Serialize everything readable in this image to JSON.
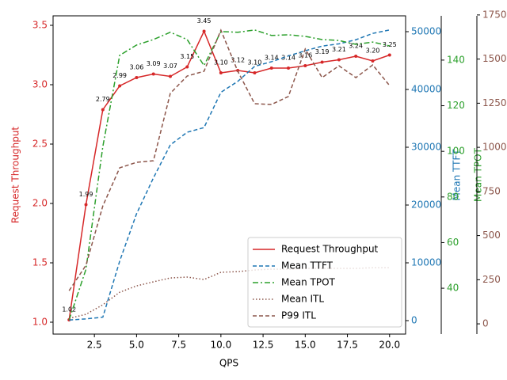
{
  "chart_data": {
    "type": "line",
    "xlabel": "QPS",
    "ylabel": "Request Throughput",
    "y2label": "Mean TTFT",
    "y3label": "Mean TPOT",
    "x": [
      1,
      2,
      3,
      4,
      5,
      6,
      7,
      8,
      9,
      10,
      11,
      12,
      13,
      14,
      15,
      16,
      17,
      18,
      19,
      20
    ],
    "xlim": [
      0.05,
      20.95
    ],
    "xticks": [
      {
        "value": 2.5,
        "label": "2.5"
      },
      {
        "value": 5,
        "label": "5.0"
      },
      {
        "value": 7.5,
        "label": "7.5"
      },
      {
        "value": 10,
        "label": "10.0"
      },
      {
        "value": 12.5,
        "label": "12.5"
      },
      {
        "value": 15,
        "label": "15.0"
      },
      {
        "value": 17.5,
        "label": "17.5"
      },
      {
        "value": 20,
        "label": "20.0"
      }
    ],
    "ylim": [
      0.9,
      3.58
    ],
    "yticks": [
      {
        "value": 1,
        "label": "1.0"
      },
      {
        "value": 1.5,
        "label": "1.5"
      },
      {
        "value": 2,
        "label": "2.0"
      },
      {
        "value": 2.5,
        "label": "2.5"
      },
      {
        "value": 3,
        "label": "3.0"
      },
      {
        "value": 3.5,
        "label": "3.5"
      }
    ],
    "y2lim": [
      -2330,
      52740
    ],
    "y2ticks": [
      0,
      10000,
      20000,
      30000,
      40000,
      50000
    ],
    "y3lim": [
      19.9,
      159.4
    ],
    "y3ticks": [
      40,
      60,
      80,
      100,
      120,
      140
    ],
    "y4lim": [
      -58,
      1745
    ],
    "y4ticks": [
      0,
      250,
      500,
      750,
      1000,
      1250,
      1500,
      1750
    ],
    "legend": "lower right",
    "series": [
      {
        "name": "Request Throughput",
        "color": "#d62728",
        "axis": "y",
        "dash": "solid",
        "markers": true,
        "values": [
          1.02,
          1.99,
          2.79,
          2.99,
          3.06,
          3.09,
          3.07,
          3.15,
          3.45,
          3.1,
          3.12,
          3.1,
          3.14,
          3.14,
          3.16,
          3.19,
          3.21,
          3.24,
          3.2,
          3.25
        ],
        "value_labels": [
          "1.02",
          "1.99",
          "2.79",
          "2.99",
          "3.06",
          "3.09",
          "3.07",
          "3.15",
          "3.45",
          "3.10",
          "3.12",
          "3.10",
          "3.14",
          "3.14",
          "3.16",
          "3.19",
          "3.21",
          "3.24",
          "3.20",
          "3.25"
        ]
      },
      {
        "name": "Mean TTFT",
        "color": "#1f77b4",
        "axis": "y2",
        "dash": "dashed",
        "values": [
          100,
          300,
          600,
          10300,
          18500,
          24700,
          30400,
          32600,
          33400,
          39500,
          41400,
          44000,
          44800,
          45800,
          46700,
          47500,
          47900,
          48600,
          49700,
          50300
        ]
      },
      {
        "name": "Mean TPOT",
        "color": "#2ca02c",
        "axis": "y3",
        "dash": "dashdot",
        "values": [
          26.1,
          48.3,
          102.1,
          142.1,
          146.6,
          149.0,
          152.2,
          149.0,
          137.6,
          152.5,
          152.2,
          153.2,
          150.8,
          151.1,
          150.4,
          149.0,
          148.6,
          146.9,
          147.9,
          146.2
        ]
      },
      {
        "name": "Mean ITL",
        "color": "#8c564b",
        "axis": "y4",
        "dash": "dotted",
        "values": [
          31,
          54,
          108,
          179,
          215,
          238,
          260,
          265,
          251,
          292,
          296,
          305,
          310,
          310,
          314,
          314,
          314,
          314,
          318,
          318
        ]
      },
      {
        "name": "P99 ITL",
        "color": "#8c564b",
        "axis": "y4",
        "dash": "dashed",
        "values": [
          188,
          332,
          668,
          884,
          915,
          924,
          1306,
          1404,
          1431,
          1664,
          1431,
          1247,
          1243,
          1288,
          1557,
          1395,
          1462,
          1395,
          1467,
          1350
        ]
      }
    ]
  }
}
